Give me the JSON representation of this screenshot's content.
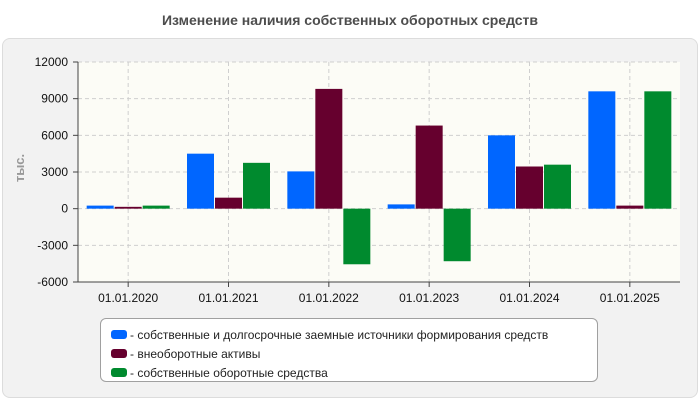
{
  "chart_data": {
    "type": "bar",
    "title": "Изменение наличия собственных оборотных средств",
    "ylabel": "тыс.",
    "xlabel": "",
    "categories": [
      "01.01.2020",
      "01.01.2021",
      "01.01.2022",
      "01.01.2023",
      "01.01.2024",
      "01.01.2025"
    ],
    "ylim": [
      -6000,
      12000
    ],
    "yticks": [
      12000,
      9000,
      6000,
      3000,
      0,
      -3000,
      -6000
    ],
    "grid": true,
    "legend_position": "bottom",
    "series": [
      {
        "name": "собственные и долгосрочные заемные источники формирования средств",
        "color": "#0066ff",
        "values": [
          250,
          4500,
          3050,
          350,
          6000,
          9600
        ]
      },
      {
        "name": "внеоборотные активы",
        "color": "#66002e",
        "values": [
          150,
          900,
          9800,
          6800,
          3450,
          250
        ]
      },
      {
        "name": "собственные оборотные средства",
        "color": "#008a2e",
        "values": [
          250,
          3750,
          -4550,
          -4300,
          3600,
          9600
        ]
      }
    ]
  }
}
